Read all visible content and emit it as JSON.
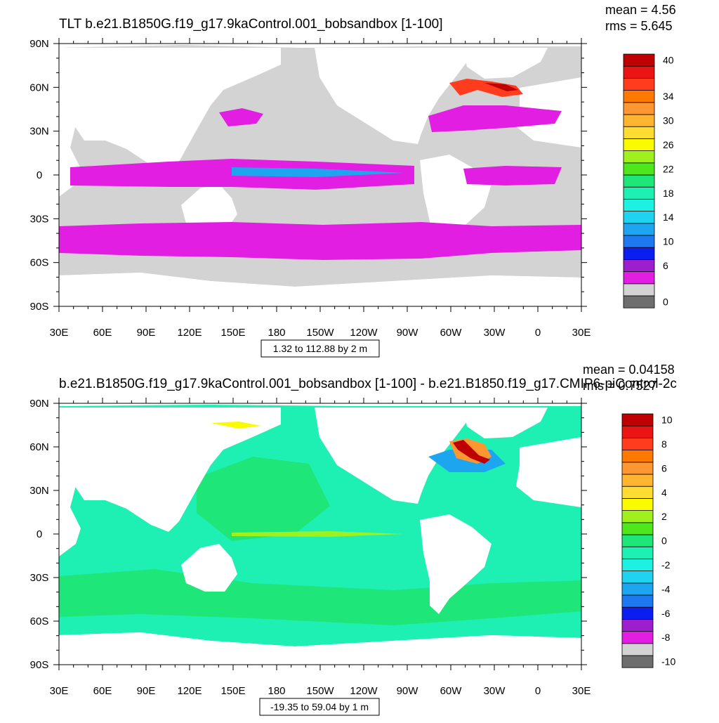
{
  "chart_data": [
    {
      "type": "heatmap",
      "title": "TLT b.e21.B1850G.f19_g17.9kaControl.001_bobsandbox [1-100]",
      "stats": {
        "mean": "mean = 4.56",
        "rms": "rms = 5.645"
      },
      "range_label": "1.32 to 112.88 by 2 m",
      "xticks": [
        "30E",
        "60E",
        "90E",
        "120E",
        "150E",
        "180",
        "150W",
        "120W",
        "90W",
        "60W",
        "30W",
        "0",
        "30E"
      ],
      "yticks": [
        "90N",
        "60N",
        "30N",
        "0",
        "30S",
        "60S",
        "90S"
      ],
      "xlim": [
        30,
        390
      ],
      "ylim": [
        -90,
        90
      ],
      "colorbar": {
        "colors": [
          "#6e6e6e",
          "#d3d3d3",
          "#e31ee3",
          "#9c1ecc",
          "#0a1ef0",
          "#1e78f0",
          "#1ea5f0",
          "#1ed2f0",
          "#1ef0e1",
          "#1ef0b4",
          "#1ee678",
          "#50e61e",
          "#a0f01e",
          "#fafa00",
          "#ffdc32",
          "#ffb432",
          "#ff9632",
          "#ff7800",
          "#ff3c1e",
          "#eb1414",
          "#be0000"
        ],
        "labels": [
          {
            "text": "0",
            "index": 0
          },
          {
            "text": "6",
            "index": 3
          },
          {
            "text": "10",
            "index": 5
          },
          {
            "text": "14",
            "index": 7
          },
          {
            "text": "18",
            "index": 9
          },
          {
            "text": "22",
            "index": 11
          },
          {
            "text": "26",
            "index": 13
          },
          {
            "text": "30",
            "index": 15
          },
          {
            "text": "34",
            "index": 17
          },
          {
            "text": "40",
            "index": 20
          }
        ]
      }
    },
    {
      "type": "heatmap",
      "title": "b.e21.B1850G.f19_g17.9kaControl.001_bobsandbox [1-100] - b.e21.B1850.f19_g17.CMIP6-piControl-2c",
      "stats": {
        "mean": "mean = 0.04158",
        "rms": "rms = 0.7527"
      },
      "range_label": "-19.35 to 59.04 by 1 m",
      "xticks": [
        "30E",
        "60E",
        "90E",
        "120E",
        "150E",
        "180",
        "150W",
        "120W",
        "90W",
        "60W",
        "30W",
        "0",
        "30E"
      ],
      "yticks": [
        "90N",
        "60N",
        "30N",
        "0",
        "30S",
        "60S",
        "90S"
      ],
      "xlim": [
        30,
        390
      ],
      "ylim": [
        -90,
        90
      ],
      "colorbar": {
        "colors": [
          "#6e6e6e",
          "#d3d3d3",
          "#e31ee3",
          "#9c1ecc",
          "#0a1ef0",
          "#1e78f0",
          "#1ea5f0",
          "#1ed2f0",
          "#1ef0e1",
          "#1ef0b4",
          "#1ee678",
          "#50e61e",
          "#a0f01e",
          "#fafa00",
          "#ffdc32",
          "#ffb432",
          "#ff9632",
          "#ff7800",
          "#ff3c1e",
          "#eb1414",
          "#be0000"
        ],
        "labels": [
          {
            "text": "-10",
            "index": 0
          },
          {
            "text": "-8",
            "index": 2
          },
          {
            "text": "-6",
            "index": 4
          },
          {
            "text": "-4",
            "index": 6
          },
          {
            "text": "-2",
            "index": 8
          },
          {
            "text": "0",
            "index": 10
          },
          {
            "text": "2",
            "index": 12
          },
          {
            "text": "4",
            "index": 14
          },
          {
            "text": "6",
            "index": 16
          },
          {
            "text": "8",
            "index": 18
          },
          {
            "text": "10",
            "index": 20
          }
        ]
      }
    }
  ]
}
